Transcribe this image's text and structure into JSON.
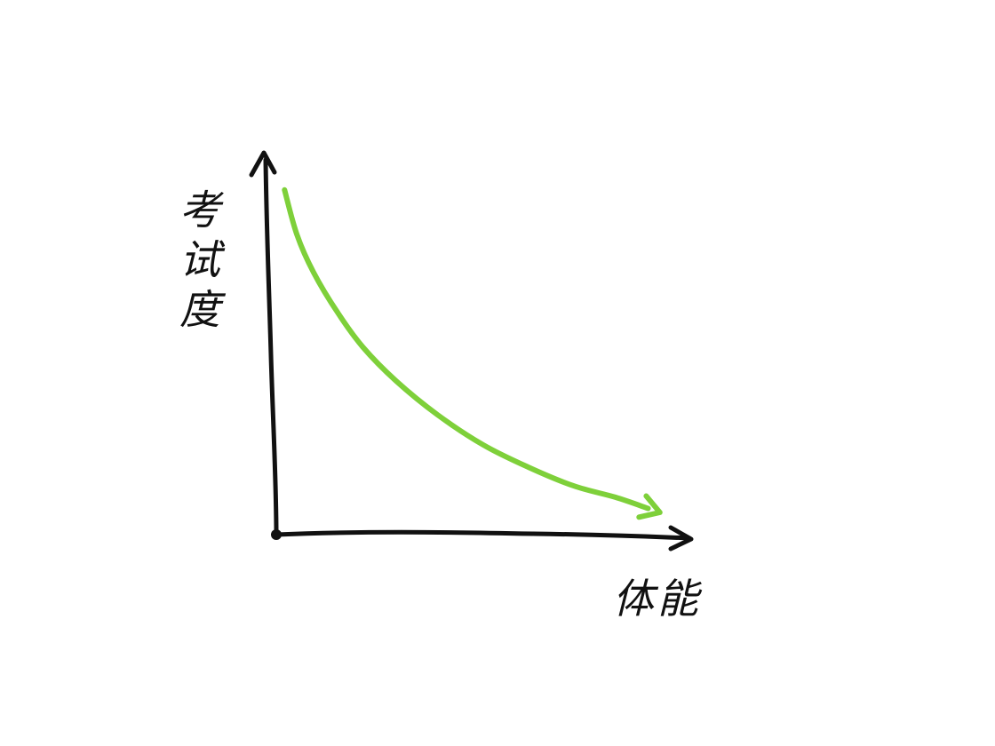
{
  "chart_data": {
    "type": "line",
    "style": "hand-drawn sketch",
    "xlabel": "体能",
    "ylabel": "考试度",
    "xticks": [],
    "yticks": [],
    "grid": false,
    "legend": "none",
    "axis_arrows": true,
    "series": [
      {
        "color": "#7ed03a",
        "arrowhead": true,
        "points": [
          {
            "x": 0.02,
            "y": 0.92
          },
          {
            "x": 0.05,
            "y": 0.8
          },
          {
            "x": 0.09,
            "y": 0.7
          },
          {
            "x": 0.15,
            "y": 0.59
          },
          {
            "x": 0.21,
            "y": 0.5
          },
          {
            "x": 0.29,
            "y": 0.41
          },
          {
            "x": 0.39,
            "y": 0.32
          },
          {
            "x": 0.5,
            "y": 0.24
          },
          {
            "x": 0.61,
            "y": 0.18
          },
          {
            "x": 0.72,
            "y": 0.13
          },
          {
            "x": 0.82,
            "y": 0.1
          },
          {
            "x": 0.9,
            "y": 0.07
          }
        ]
      }
    ]
  },
  "colors": {
    "ink": "#111111",
    "curve": "#7ed03a",
    "background": "#ffffff"
  }
}
